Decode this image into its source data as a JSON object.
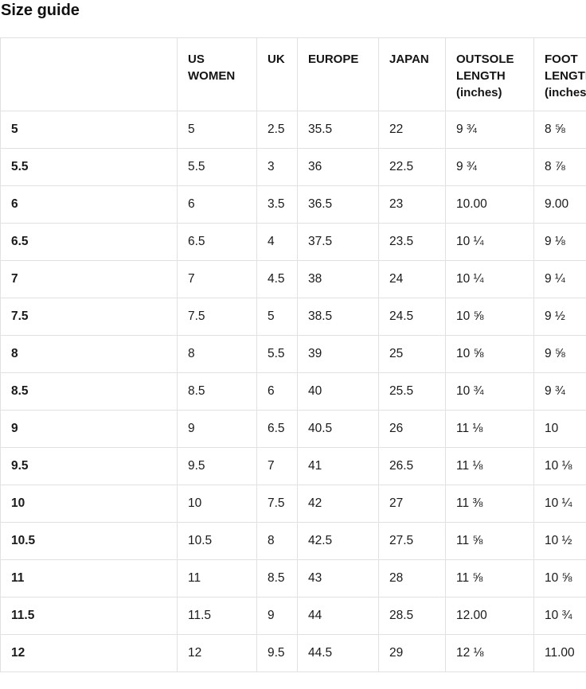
{
  "page": {
    "title": "Size guide"
  },
  "colors": {
    "background": "#ffffff",
    "text": "#1a1a1a",
    "border": "#e1e1e1"
  },
  "table": {
    "columns": [
      "",
      "US WOMEN",
      "UK",
      "EUROPE",
      "JAPAN",
      "OUTSOLE LENGTH (inches)",
      "FOOT LENGTH (inches)"
    ],
    "rows": [
      {
        "cells": [
          "5",
          "5",
          "2.5",
          "35.5",
          "22",
          "9 ¾",
          "8 ⅝"
        ]
      },
      {
        "cells": [
          "5.5",
          "5.5",
          "3",
          "36",
          "22.5",
          "9 ¾",
          "8 ⅞"
        ]
      },
      {
        "cells": [
          "6",
          "6",
          "3.5",
          "36.5",
          "23",
          "10.00",
          "9.00"
        ]
      },
      {
        "cells": [
          "6.5",
          "6.5",
          "4",
          "37.5",
          "23.5",
          "10 ¼",
          "9 ⅛"
        ]
      },
      {
        "cells": [
          "7",
          "7",
          "4.5",
          "38",
          "24",
          "10 ¼",
          "9 ¼"
        ]
      },
      {
        "cells": [
          "7.5",
          "7.5",
          "5",
          "38.5",
          "24.5",
          "10 ⅝",
          "9 ½"
        ]
      },
      {
        "cells": [
          "8",
          "8",
          "5.5",
          "39",
          "25",
          "10 ⅝",
          "9 ⅝"
        ]
      },
      {
        "cells": [
          "8.5",
          "8.5",
          "6",
          "40",
          "25.5",
          "10 ¾",
          "9 ¾"
        ]
      },
      {
        "cells": [
          "9",
          "9",
          "6.5",
          "40.5",
          "26",
          "11 ⅛",
          "10"
        ]
      },
      {
        "cells": [
          "9.5",
          "9.5",
          "7",
          "41",
          "26.5",
          "11 ⅛",
          "10 ⅛"
        ]
      },
      {
        "cells": [
          "10",
          "10",
          "7.5",
          "42",
          "27",
          "11 ⅜",
          "10 ¼"
        ]
      },
      {
        "cells": [
          "10.5",
          "10.5",
          "8",
          "42.5",
          "27.5",
          "11 ⅝",
          "10 ½"
        ]
      },
      {
        "cells": [
          "11",
          "11",
          "8.5",
          "43",
          "28",
          "11 ⅝",
          "10 ⅝"
        ]
      },
      {
        "cells": [
          "11.5",
          "11.5",
          "9",
          "44",
          "28.5",
          "12.00",
          "10 ¾"
        ]
      },
      {
        "cells": [
          "12",
          "12",
          "9.5",
          "44.5",
          "29",
          "12 ⅛",
          "11.00"
        ]
      }
    ]
  }
}
